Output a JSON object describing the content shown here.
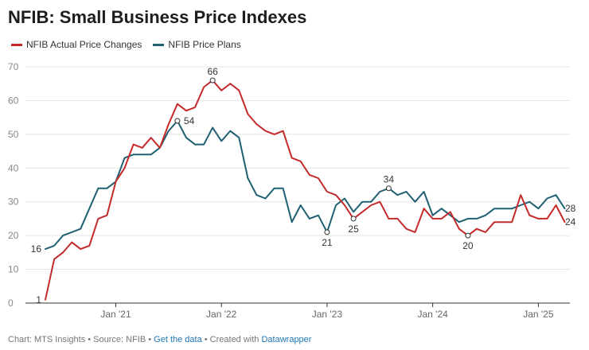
{
  "chart_data": {
    "type": "line",
    "title": "NFIB: Small Business Price Indexes",
    "xlabel": "",
    "ylabel": "",
    "ylim": [
      0,
      70
    ],
    "yticks": [
      0,
      10,
      20,
      30,
      40,
      50,
      60,
      70
    ],
    "x_start": "2020-05",
    "x_end": "2025-06",
    "xtick_labels": [
      {
        "label": "Jan '21",
        "month_index": 8
      },
      {
        "label": "Jan '22",
        "month_index": 20
      },
      {
        "label": "Jan '23",
        "month_index": 32
      },
      {
        "label": "Jan '24",
        "month_index": 44
      },
      {
        "label": "Jan '25",
        "month_index": 56
      }
    ],
    "series": [
      {
        "name": "NFIB Actual Price Changes",
        "color": "#c42a2a",
        "values": [
          1,
          13,
          15,
          18,
          16,
          17,
          25,
          26,
          36,
          40,
          47,
          46,
          49,
          46,
          53,
          59,
          57,
          58,
          64,
          66,
          63,
          65,
          63,
          56,
          53,
          51,
          50,
          51,
          43,
          42,
          38,
          37,
          33,
          32,
          29,
          25,
          27,
          29,
          30,
          25,
          25,
          22,
          21,
          28,
          25,
          25,
          27,
          22,
          20,
          22,
          21,
          24,
          24,
          24,
          32,
          26,
          25,
          25,
          29,
          24
        ]
      },
      {
        "name": "NFIB Price Plans",
        "color": "#1f6172",
        "values": [
          16,
          17,
          20,
          21,
          22,
          28,
          34,
          34,
          36,
          43,
          44,
          44,
          44,
          46,
          51,
          54,
          49,
          47,
          47,
          52,
          48,
          51,
          49,
          37,
          32,
          31,
          34,
          34,
          24,
          29,
          25,
          26,
          21,
          29,
          31,
          27,
          30,
          30,
          33,
          34,
          32,
          33,
          30,
          33,
          26,
          28,
          26,
          24,
          25,
          25,
          26,
          28,
          28,
          28,
          29,
          30,
          28,
          31,
          32,
          28
        ]
      }
    ],
    "annotations": [
      {
        "series": 0,
        "index": 0,
        "label": "1",
        "anchor": "left"
      },
      {
        "series": 1,
        "index": 0,
        "label": "16",
        "anchor": "left"
      },
      {
        "series": 1,
        "index": 15,
        "label": "54",
        "anchor": "right"
      },
      {
        "series": 0,
        "index": 19,
        "label": "66",
        "anchor": "above"
      },
      {
        "series": 1,
        "index": 32,
        "label": "21",
        "anchor": "below"
      },
      {
        "series": 0,
        "index": 35,
        "label": "25",
        "anchor": "below"
      },
      {
        "series": 1,
        "index": 39,
        "label": "34",
        "anchor": "above"
      },
      {
        "series": 0,
        "index": 48,
        "label": "20",
        "anchor": "below"
      },
      {
        "series": 1,
        "index": 59,
        "label": "28",
        "anchor": "end"
      },
      {
        "series": 0,
        "index": 59,
        "label": "24",
        "anchor": "end"
      }
    ]
  },
  "footer": {
    "prefix": "Chart: MTS Insights • Source: NFIB • ",
    "data_link": "Get the data",
    "middle": " • Created with ",
    "tool_link": "Datawrapper"
  }
}
